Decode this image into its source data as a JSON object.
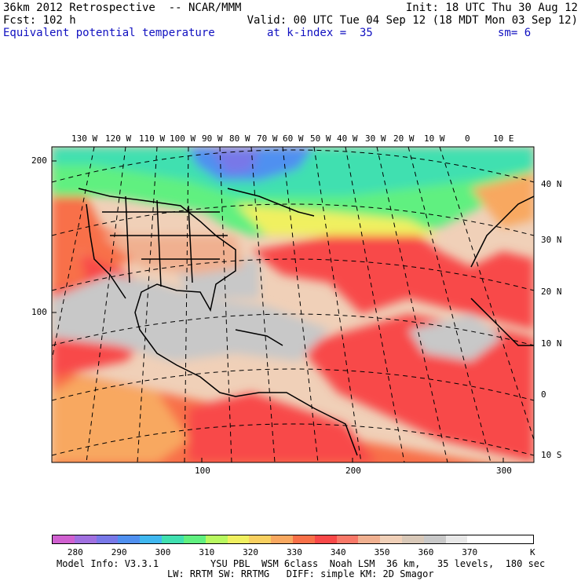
{
  "header": {
    "line1_left": "36km 2012 Retrospective  -- NCAR/MMM",
    "line1_right": "Init: 18 UTC Thu 30 Aug 12",
    "line2_left": "Fcst: 102 h",
    "line2_right": "Valid: 00 UTC Tue 04 Sep 12 (18 MDT Mon 03 Sep 12)",
    "field": "Equivalent potential temperature",
    "k_index": "at k-index =  35",
    "smoothing": "sm= 6"
  },
  "map": {
    "lon_labels": [
      "130 W",
      "120 W",
      "110 W",
      "100 W",
      "90 W",
      "80 W",
      "70 W",
      "60 W",
      "50 W",
      "40 W",
      "30 W",
      "20 W",
      "10 W",
      "0",
      "10 E"
    ],
    "lat_labels": [
      "40 N",
      "30 N",
      "20 N",
      "10 N",
      "0",
      "10 S"
    ],
    "grid_left_labels": [
      "200",
      "100"
    ],
    "grid_bottom_labels": [
      "100",
      "200",
      "300"
    ]
  },
  "colorbar": {
    "colors": [
      "#d060d0",
      "#a070e0",
      "#7878e8",
      "#5090f0",
      "#40b8f0",
      "#40e0b0",
      "#60f080",
      "#b8f860",
      "#f0f060",
      "#f8d060",
      "#f8a860",
      "#f87048",
      "#f84848",
      "#f87868",
      "#f0b090",
      "#f0d0b8",
      "#d8c8b8",
      "#c8c8c8",
      "#e8e8e8",
      "#ffffff",
      "#ffffff",
      "#ffffff"
    ],
    "labels": [
      "280",
      "290",
      "300",
      "310",
      "320",
      "330",
      "340",
      "350",
      "360",
      "370"
    ],
    "unit": "K"
  },
  "footer": {
    "model_info": "Model Info: V3.3.1",
    "physics1": "YSU PBL  WSM 6class  Noah LSM  36 km,   35 levels,  180 sec",
    "physics2": "LW: RRTM SW: RRTMG   DIFF: simple KM: 2D Smagor"
  }
}
